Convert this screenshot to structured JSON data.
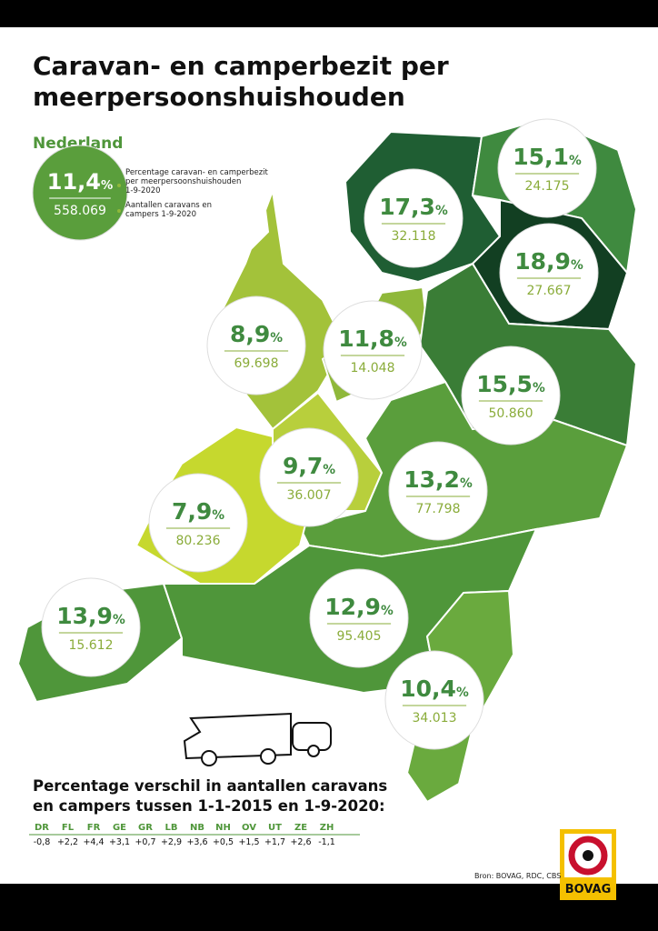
{
  "title_lines": [
    "Caravan- en camperbezit per",
    "meerpersoonshuishouden"
  ],
  "percent_sign": "%",
  "national": {
    "heading": "Nederland",
    "percentage": "11,4",
    "count": "558.069",
    "color": "#5a9e3c",
    "legend": [
      "Percentage caravan- en camperbezit",
      "per meerpersoonshuishouden",
      "1-9-2020",
      "Aantallen caravans en",
      "campers 1-9-2020"
    ]
  },
  "regions": [
    {
      "percentage": "17,3",
      "count": "32.118",
      "color": "#1f5e33"
    },
    {
      "percentage": "15,1",
      "count": "24.175",
      "color": "#3f8a3f"
    },
    {
      "percentage": "18,9",
      "count": "27.667",
      "color": "#123f22"
    },
    {
      "percentage": "8,9",
      "count": "69.698",
      "color": "#a3c23a"
    },
    {
      "percentage": "11,8",
      "count": "14.048",
      "color": "#8fb83a"
    },
    {
      "percentage": "15,5",
      "count": "50.860",
      "color": "#3a7d36"
    },
    {
      "percentage": "9,7",
      "count": "36.007",
      "color": "#b8cf3c"
    },
    {
      "percentage": "13,2",
      "count": "77.798",
      "color": "#5a9e3c"
    },
    {
      "percentage": "7,9",
      "count": "80.236",
      "color": "#c6d82e"
    },
    {
      "percentage": "13,9",
      "count": "15.612",
      "color": "#4f963a"
    },
    {
      "percentage": "12,9",
      "count": "95.405",
      "color": "#4f963a"
    },
    {
      "percentage": "10,4",
      "count": "34.013",
      "color": "#6aaa3e"
    }
  ],
  "change": {
    "heading_lines": [
      "Percentage verschil in aantallen caravans",
      "en campers tussen 1-1-2015 en 1-9-2020:"
    ],
    "codes": [
      "DR",
      "FL",
      "FR",
      "GE",
      "GR",
      "LB",
      "NB",
      "NH",
      "OV",
      "UT",
      "ZE",
      "ZH"
    ],
    "values": [
      "-0,8",
      "+2,2",
      "+4,4",
      "+3,1",
      "+0,7",
      "+2,9",
      "+3,6",
      "+0,5",
      "+1,5",
      "+1,7",
      "+2,6",
      "-1,1"
    ]
  },
  "source": "Bron: BOVAG, RDC, CBS",
  "logo": "BOVAG"
}
